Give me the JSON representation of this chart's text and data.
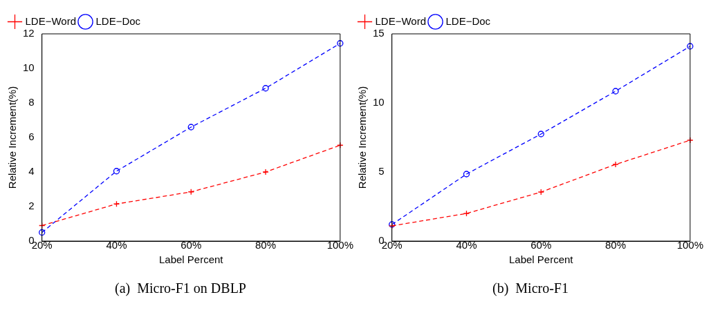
{
  "chart_data": [
    {
      "type": "line",
      "xlabel": "Label Percent",
      "ylabel": "Relative Increment(%)",
      "annotations": [
        "(a)  Micro-F1 on DBLP"
      ],
      "categories": [
        "20%",
        "40%",
        "60%",
        "80%",
        "100%"
      ],
      "ylim": [
        0,
        12
      ],
      "yticks": [
        0,
        2,
        4,
        6,
        8,
        10,
        12
      ],
      "grid": false,
      "legend": "top left",
      "line_style": "dashed",
      "series": [
        {
          "name": "LDE−Word",
          "color": "#ff0000",
          "marker": "cross",
          "values": [
            0.9,
            2.15,
            2.85,
            4.0,
            5.55
          ]
        },
        {
          "name": "LDE−Doc",
          "color": "#0000ff",
          "marker": "circle",
          "values": [
            0.5,
            4.05,
            6.6,
            8.85,
            11.45
          ]
        }
      ]
    },
    {
      "type": "line",
      "xlabel": "Label Percent",
      "ylabel": "Relative Increment(%)",
      "annotations": [
        "(b)  Micro-F1"
      ],
      "categories": [
        "20%",
        "40%",
        "60%",
        "80%",
        "100%"
      ],
      "ylim": [
        0,
        15
      ],
      "yticks": [
        0,
        5,
        10,
        15
      ],
      "grid": false,
      "legend": "top left",
      "line_style": "dashed",
      "series": [
        {
          "name": "LDE−Word",
          "color": "#ff0000",
          "marker": "cross",
          "values": [
            1.1,
            2.0,
            3.55,
            5.55,
            7.3
          ]
        },
        {
          "name": "LDE−Doc",
          "color": "#0000ff",
          "marker": "circle",
          "values": [
            1.2,
            4.85,
            7.75,
            10.85,
            14.1
          ]
        }
      ]
    }
  ]
}
